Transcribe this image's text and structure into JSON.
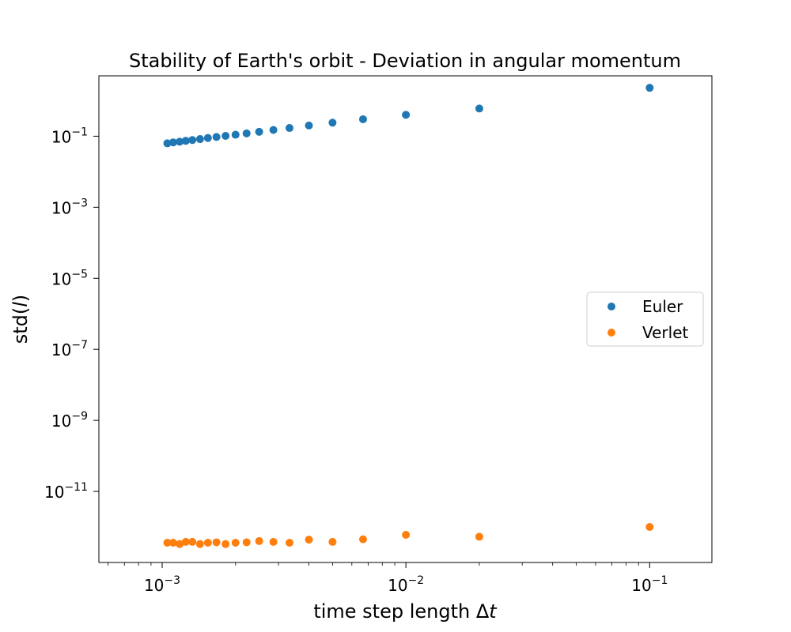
{
  "chart_data": {
    "type": "scatter",
    "title": "Stability of Earth's orbit - Deviation in angular momentum",
    "xlabel": "time step length Δt",
    "ylabel": "std(l)",
    "x_scale": "log",
    "y_scale": "log",
    "xlim": [
      0.00055,
      0.18
    ],
    "ylim": [
      1e-13,
      5
    ],
    "x_ticks": [
      {
        "value": 0.001,
        "base": "10",
        "exp": "−3"
      },
      {
        "value": 0.01,
        "base": "10",
        "exp": "−2"
      },
      {
        "value": 0.1,
        "base": "10",
        "exp": "−1"
      }
    ],
    "y_ticks": [
      {
        "value": 1e-11,
        "base": "10",
        "exp": "−11"
      },
      {
        "value": 1e-09,
        "base": "10",
        "exp": "−9"
      },
      {
        "value": 1e-07,
        "base": "10",
        "exp": "−7"
      },
      {
        "value": 1e-05,
        "base": "10",
        "exp": "−5"
      },
      {
        "value": 0.001,
        "base": "10",
        "exp": "−3"
      },
      {
        "value": 0.1,
        "base": "10",
        "exp": "−1"
      }
    ],
    "grid": false,
    "legend_position": "center-right",
    "series": [
      {
        "name": "Euler",
        "color": "#1f77b4",
        "x": [
          0.00105,
          0.00111,
          0.00118,
          0.00125,
          0.00133,
          0.00143,
          0.00154,
          0.00167,
          0.00182,
          0.002,
          0.00222,
          0.0025,
          0.00286,
          0.00333,
          0.004,
          0.005,
          0.00667,
          0.01,
          0.02,
          0.1
        ],
        "y": [
          0.063,
          0.067,
          0.07,
          0.074,
          0.078,
          0.083,
          0.089,
          0.095,
          0.102,
          0.11,
          0.12,
          0.133,
          0.15,
          0.17,
          0.2,
          0.24,
          0.3,
          0.4,
          0.6,
          2.3
        ]
      },
      {
        "name": "Verlet",
        "color": "#ff7f0e",
        "x": [
          0.00105,
          0.00111,
          0.00118,
          0.00125,
          0.00133,
          0.00143,
          0.00154,
          0.00167,
          0.00182,
          0.002,
          0.00222,
          0.0025,
          0.00286,
          0.00333,
          0.004,
          0.005,
          0.00667,
          0.01,
          0.02,
          0.1
        ],
        "y": [
          3.6e-13,
          3.6e-13,
          3.3e-13,
          3.8e-13,
          3.8e-13,
          3.3e-13,
          3.6e-13,
          3.7e-13,
          3.3e-13,
          3.6e-13,
          3.7e-13,
          4e-13,
          3.8e-13,
          3.6e-13,
          4.4e-13,
          3.8e-13,
          4.5e-13,
          6e-13,
          5.3e-13,
          1e-12
        ]
      }
    ]
  }
}
